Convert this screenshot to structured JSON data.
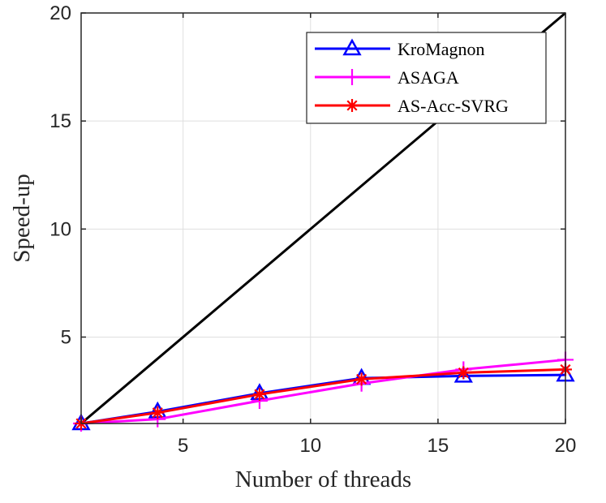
{
  "chart_data": {
    "type": "line",
    "title": "",
    "xlabel": "Number of threads",
    "ylabel": "Speed-up",
    "xlim": [
      1,
      20
    ],
    "ylim": [
      1,
      20
    ],
    "xticks": [
      5,
      10,
      15,
      20
    ],
    "yticks": [
      5,
      10,
      15,
      20
    ],
    "xtick_labels": [
      "5",
      "10",
      "15",
      "20"
    ],
    "ytick_labels": [
      "5",
      "10",
      "15",
      "20"
    ],
    "grid": true,
    "legend_position": "top-right",
    "x": [
      1,
      4,
      8,
      12,
      16,
      20
    ],
    "ideal_line": {
      "x": [
        1,
        20
      ],
      "y": [
        1,
        20
      ],
      "color": "#000000"
    },
    "series": [
      {
        "name": "KroMagnon",
        "marker": "triangle",
        "color": "#0000ff",
        "values": [
          1.0,
          1.55,
          2.4,
          3.1,
          3.2,
          3.25
        ]
      },
      {
        "name": "ASAGA",
        "marker": "plus",
        "color": "#ff00ff",
        "values": [
          1.0,
          1.2,
          2.05,
          2.85,
          3.5,
          3.95
        ]
      },
      {
        "name": "AS-Acc-SVRG",
        "marker": "asterisk",
        "color": "#ff0000",
        "values": [
          1.0,
          1.5,
          2.35,
          3.05,
          3.35,
          3.5
        ]
      }
    ]
  }
}
